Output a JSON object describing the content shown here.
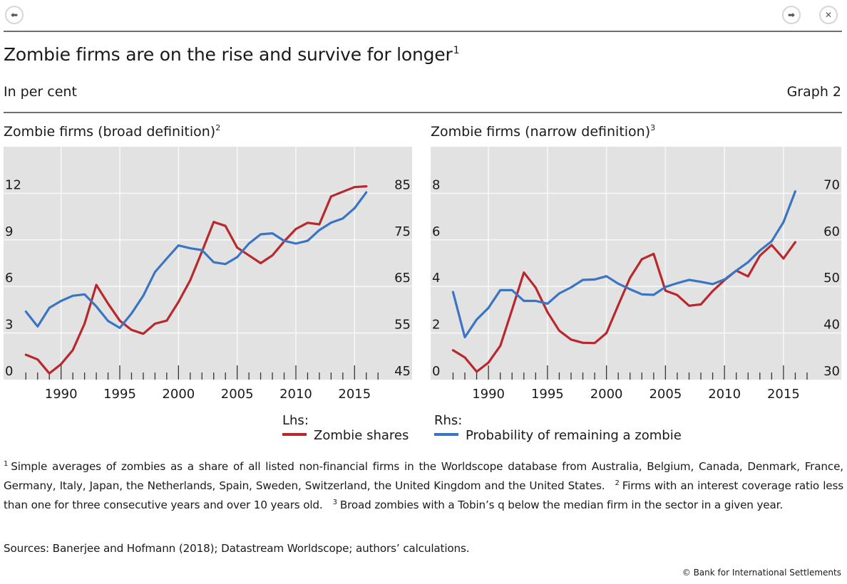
{
  "nav": {
    "back_icon": "arrow-left-icon",
    "forward_icon": "arrow-right-icon",
    "close_icon": "close-x-icon",
    "back_glyph": "⬅",
    "forward_glyph": "➡",
    "close_glyph": "✕"
  },
  "header": {
    "title": "Zombie firms are on the rise and survive for longer",
    "title_note": "1",
    "unit": "In per cent",
    "graph_number": "Graph 2"
  },
  "colors": {
    "zombie_shares": "#b8282d",
    "probability": "#3a75c4",
    "plot_bg": "#e2e2e2",
    "grid": "#f7f7f7"
  },
  "legend": {
    "lhs_label": "Lhs:",
    "rhs_label": "Rhs:",
    "lhs_series": "Zombie shares",
    "rhs_series": "Probability of remaining a zombie"
  },
  "chart_data": [
    {
      "type": "line",
      "title": "Zombie firms (broad definition)",
      "title_note": "2",
      "x": [
        1987,
        1988,
        1989,
        1990,
        1991,
        1992,
        1993,
        1994,
        1995,
        1996,
        1997,
        1998,
        1999,
        2000,
        2001,
        2002,
        2003,
        2004,
        2005,
        2006,
        2007,
        2008,
        2009,
        2010,
        2011,
        2012,
        2013,
        2014,
        2015,
        2016
      ],
      "xlim": [
        1985.1,
        2019.9
      ],
      "x_ticks": [
        1990,
        1995,
        2000,
        2005,
        2010,
        2015
      ],
      "x_tick_labels": [
        "1990",
        "1995",
        "2000",
        "2005",
        "2010",
        "2015"
      ],
      "minor_x_ticks": [
        1987,
        1988,
        1989,
        1991,
        1992,
        1993,
        1994,
        1996,
        1997,
        1998,
        1999,
        2001,
        2002,
        2003,
        2004,
        2006,
        2007,
        2008,
        2009,
        2011,
        2012,
        2013,
        2014,
        2016,
        2017
      ],
      "ylim_left": [
        0,
        15
      ],
      "y_ticks_left": [
        0,
        3,
        6,
        9,
        12
      ],
      "y_tick_labels_left": [
        "0",
        "3",
        "6",
        "9",
        "12"
      ],
      "ylim_right": [
        45,
        95
      ],
      "y_ticks_right": [
        45,
        55,
        65,
        75,
        85
      ],
      "y_tick_labels_right": [
        "45",
        "55",
        "65",
        "75",
        "85"
      ],
      "grid": true,
      "series": [
        {
          "name": "Zombie shares",
          "axis": "left",
          "color": "#b8282d",
          "values": [
            1.6,
            1.3,
            0.4,
            1.0,
            1.9,
            3.6,
            6.1,
            4.9,
            3.8,
            3.2,
            2.95,
            3.6,
            3.8,
            5.0,
            6.4,
            8.25,
            10.15,
            9.9,
            8.5,
            8.0,
            7.5,
            8.0,
            8.9,
            9.7,
            10.1,
            10.0,
            11.8,
            12.1,
            12.4,
            12.45
          ]
        },
        {
          "name": "Probability of remaining a zombie",
          "axis": "right",
          "color": "#3a75c4",
          "values": [
            59.6,
            56.4,
            60.4,
            61.9,
            63.0,
            63.3,
            60.7,
            57.6,
            56.1,
            59.2,
            63.0,
            68.1,
            71.0,
            73.8,
            73.2,
            72.8,
            70.2,
            69.8,
            71.3,
            74.2,
            76.2,
            76.4,
            74.8,
            74.2,
            74.8,
            77.1,
            78.7,
            79.6,
            81.8,
            85.2
          ]
        }
      ]
    },
    {
      "type": "line",
      "title": "Zombie firms (narrow definition)",
      "title_note": "3",
      "x": [
        1987,
        1988,
        1989,
        1990,
        1991,
        1992,
        1993,
        1994,
        1995,
        1996,
        1997,
        1998,
        1999,
        2000,
        2001,
        2002,
        2003,
        2004,
        2005,
        2006,
        2007,
        2008,
        2009,
        2010,
        2011,
        2012,
        2013,
        2014,
        2015,
        2016
      ],
      "xlim": [
        1985.1,
        2019.9
      ],
      "x_ticks": [
        1990,
        1995,
        2000,
        2005,
        2010,
        2015
      ],
      "x_tick_labels": [
        "1990",
        "1995",
        "2000",
        "2005",
        "2010",
        "2015"
      ],
      "minor_x_ticks": [
        1987,
        1988,
        1989,
        1991,
        1992,
        1993,
        1994,
        1996,
        1997,
        1998,
        1999,
        2001,
        2002,
        2003,
        2004,
        2006,
        2007,
        2008,
        2009,
        2011,
        2012,
        2013,
        2014,
        2016,
        2017
      ],
      "ylim_left": [
        0,
        10
      ],
      "y_ticks_left": [
        0,
        2,
        4,
        6,
        8
      ],
      "y_tick_labels_left": [
        "0",
        "2",
        "4",
        "6",
        "8"
      ],
      "ylim_right": [
        30,
        80
      ],
      "y_ticks_right": [
        30,
        40,
        50,
        60,
        70
      ],
      "y_tick_labels_right": [
        "30",
        "40",
        "50",
        "60",
        "70"
      ],
      "grid": true,
      "series": [
        {
          "name": "Zombie shares",
          "axis": "left",
          "color": "#b8282d",
          "values": [
            1.26,
            0.95,
            0.34,
            0.73,
            1.45,
            3.0,
            4.6,
            3.95,
            2.9,
            2.1,
            1.72,
            1.58,
            1.57,
            2.0,
            3.2,
            4.37,
            5.17,
            5.4,
            3.82,
            3.63,
            3.17,
            3.23,
            3.8,
            4.27,
            4.68,
            4.43,
            5.32,
            5.78,
            5.2,
            5.9
          ]
        },
        {
          "name": "Probability of remaining a zombie",
          "axis": "right",
          "color": "#3a75c4",
          "values": [
            48.8,
            39.1,
            42.9,
            45.4,
            49.2,
            49.2,
            46.9,
            46.9,
            46.3,
            48.5,
            49.8,
            51.4,
            51.5,
            52.2,
            50.6,
            49.4,
            48.3,
            48.2,
            49.9,
            50.7,
            51.4,
            51.0,
            50.5,
            51.5,
            53.4,
            55.2,
            57.7,
            59.7,
            63.8,
            70.4
          ]
        }
      ]
    }
  ],
  "footnotes": {
    "n1_mark": "1",
    "n1_text": "Simple averages of zombies as a share of all listed non-financial firms in the Worldscope database from Australia, Belgium, Canada, Denmark, France, Germany, Italy, Japan, the Netherlands, Spain, Sweden, Switzerland, the United Kingdom and the United States.",
    "n2_mark": "2",
    "n2_text": "Firms with an interest coverage ratio less than one for three consecutive years and over 10 years old.",
    "n3_mark": "3",
    "n3_text": "Broad zombies with a Tobin’s q below the median firm in the sector in a given year.",
    "sources": "Sources: Banerjee and Hofmann (2018); Datastream Worldscope; authors’ calculations.",
    "copyright": "© Bank for International Settlements"
  }
}
